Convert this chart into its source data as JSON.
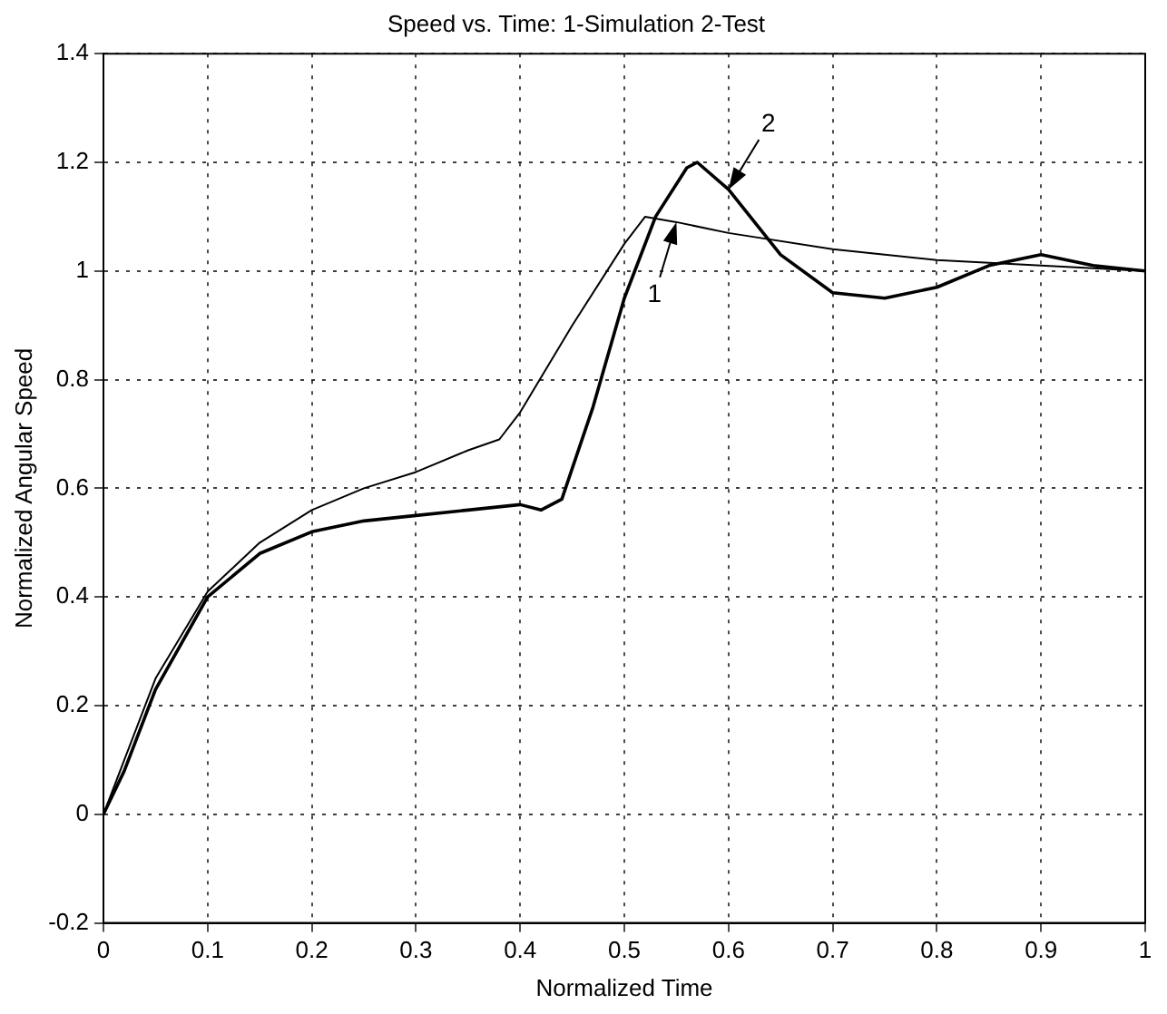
{
  "chart_data": {
    "type": "line",
    "title": "Speed vs. Time: 1-Simulation 2-Test",
    "xlabel": "Normalized Time",
    "ylabel": "Normalized Angular Speed",
    "xlim": [
      0,
      1
    ],
    "xticks": [
      0,
      0.1,
      0.2,
      0.3,
      0.4,
      0.5,
      0.6,
      0.7,
      0.8,
      0.9,
      1
    ],
    "ylim": [
      -0.2,
      1.4
    ],
    "yticks": [
      -0.2,
      0,
      0.2,
      0.4,
      0.6,
      0.8,
      1,
      1.2,
      1.4
    ],
    "grid": true,
    "legend": false,
    "marker": "none",
    "line_style": "solid",
    "series": [
      {
        "color": "#000000",
        "x": [
          0,
          0.02,
          0.05,
          0.1,
          0.15,
          0.2,
          0.25,
          0.3,
          0.35,
          0.38,
          0.4,
          0.45,
          0.5,
          0.52,
          0.55,
          0.6,
          0.7,
          0.8,
          0.9,
          1
        ],
        "values": [
          0,
          0.1,
          0.25,
          0.41,
          0.5,
          0.56,
          0.6,
          0.63,
          0.67,
          0.69,
          0.74,
          0.9,
          1.05,
          1.1,
          1.09,
          1.07,
          1.04,
          1.02,
          1.01,
          1
        ]
      },
      {
        "color": "#000000",
        "x": [
          0,
          0.02,
          0.05,
          0.1,
          0.15,
          0.2,
          0.25,
          0.3,
          0.35,
          0.4,
          0.42,
          0.44,
          0.47,
          0.5,
          0.53,
          0.56,
          0.57,
          0.6,
          0.65,
          0.7,
          0.75,
          0.8,
          0.85,
          0.9,
          0.95,
          1
        ],
        "values": [
          0,
          0.08,
          0.23,
          0.4,
          0.48,
          0.52,
          0.54,
          0.55,
          0.56,
          0.57,
          0.56,
          0.58,
          0.75,
          0.95,
          1.1,
          1.19,
          1.2,
          1.15,
          1.03,
          0.96,
          0.95,
          0.97,
          1.01,
          1.03,
          1.01,
          1
        ]
      }
    ],
    "annotations": [
      {
        "text": "1",
        "x": 0.55,
        "y": 1.09
      },
      {
        "text": "2",
        "x": 0.6,
        "y": 1.15
      }
    ]
  }
}
